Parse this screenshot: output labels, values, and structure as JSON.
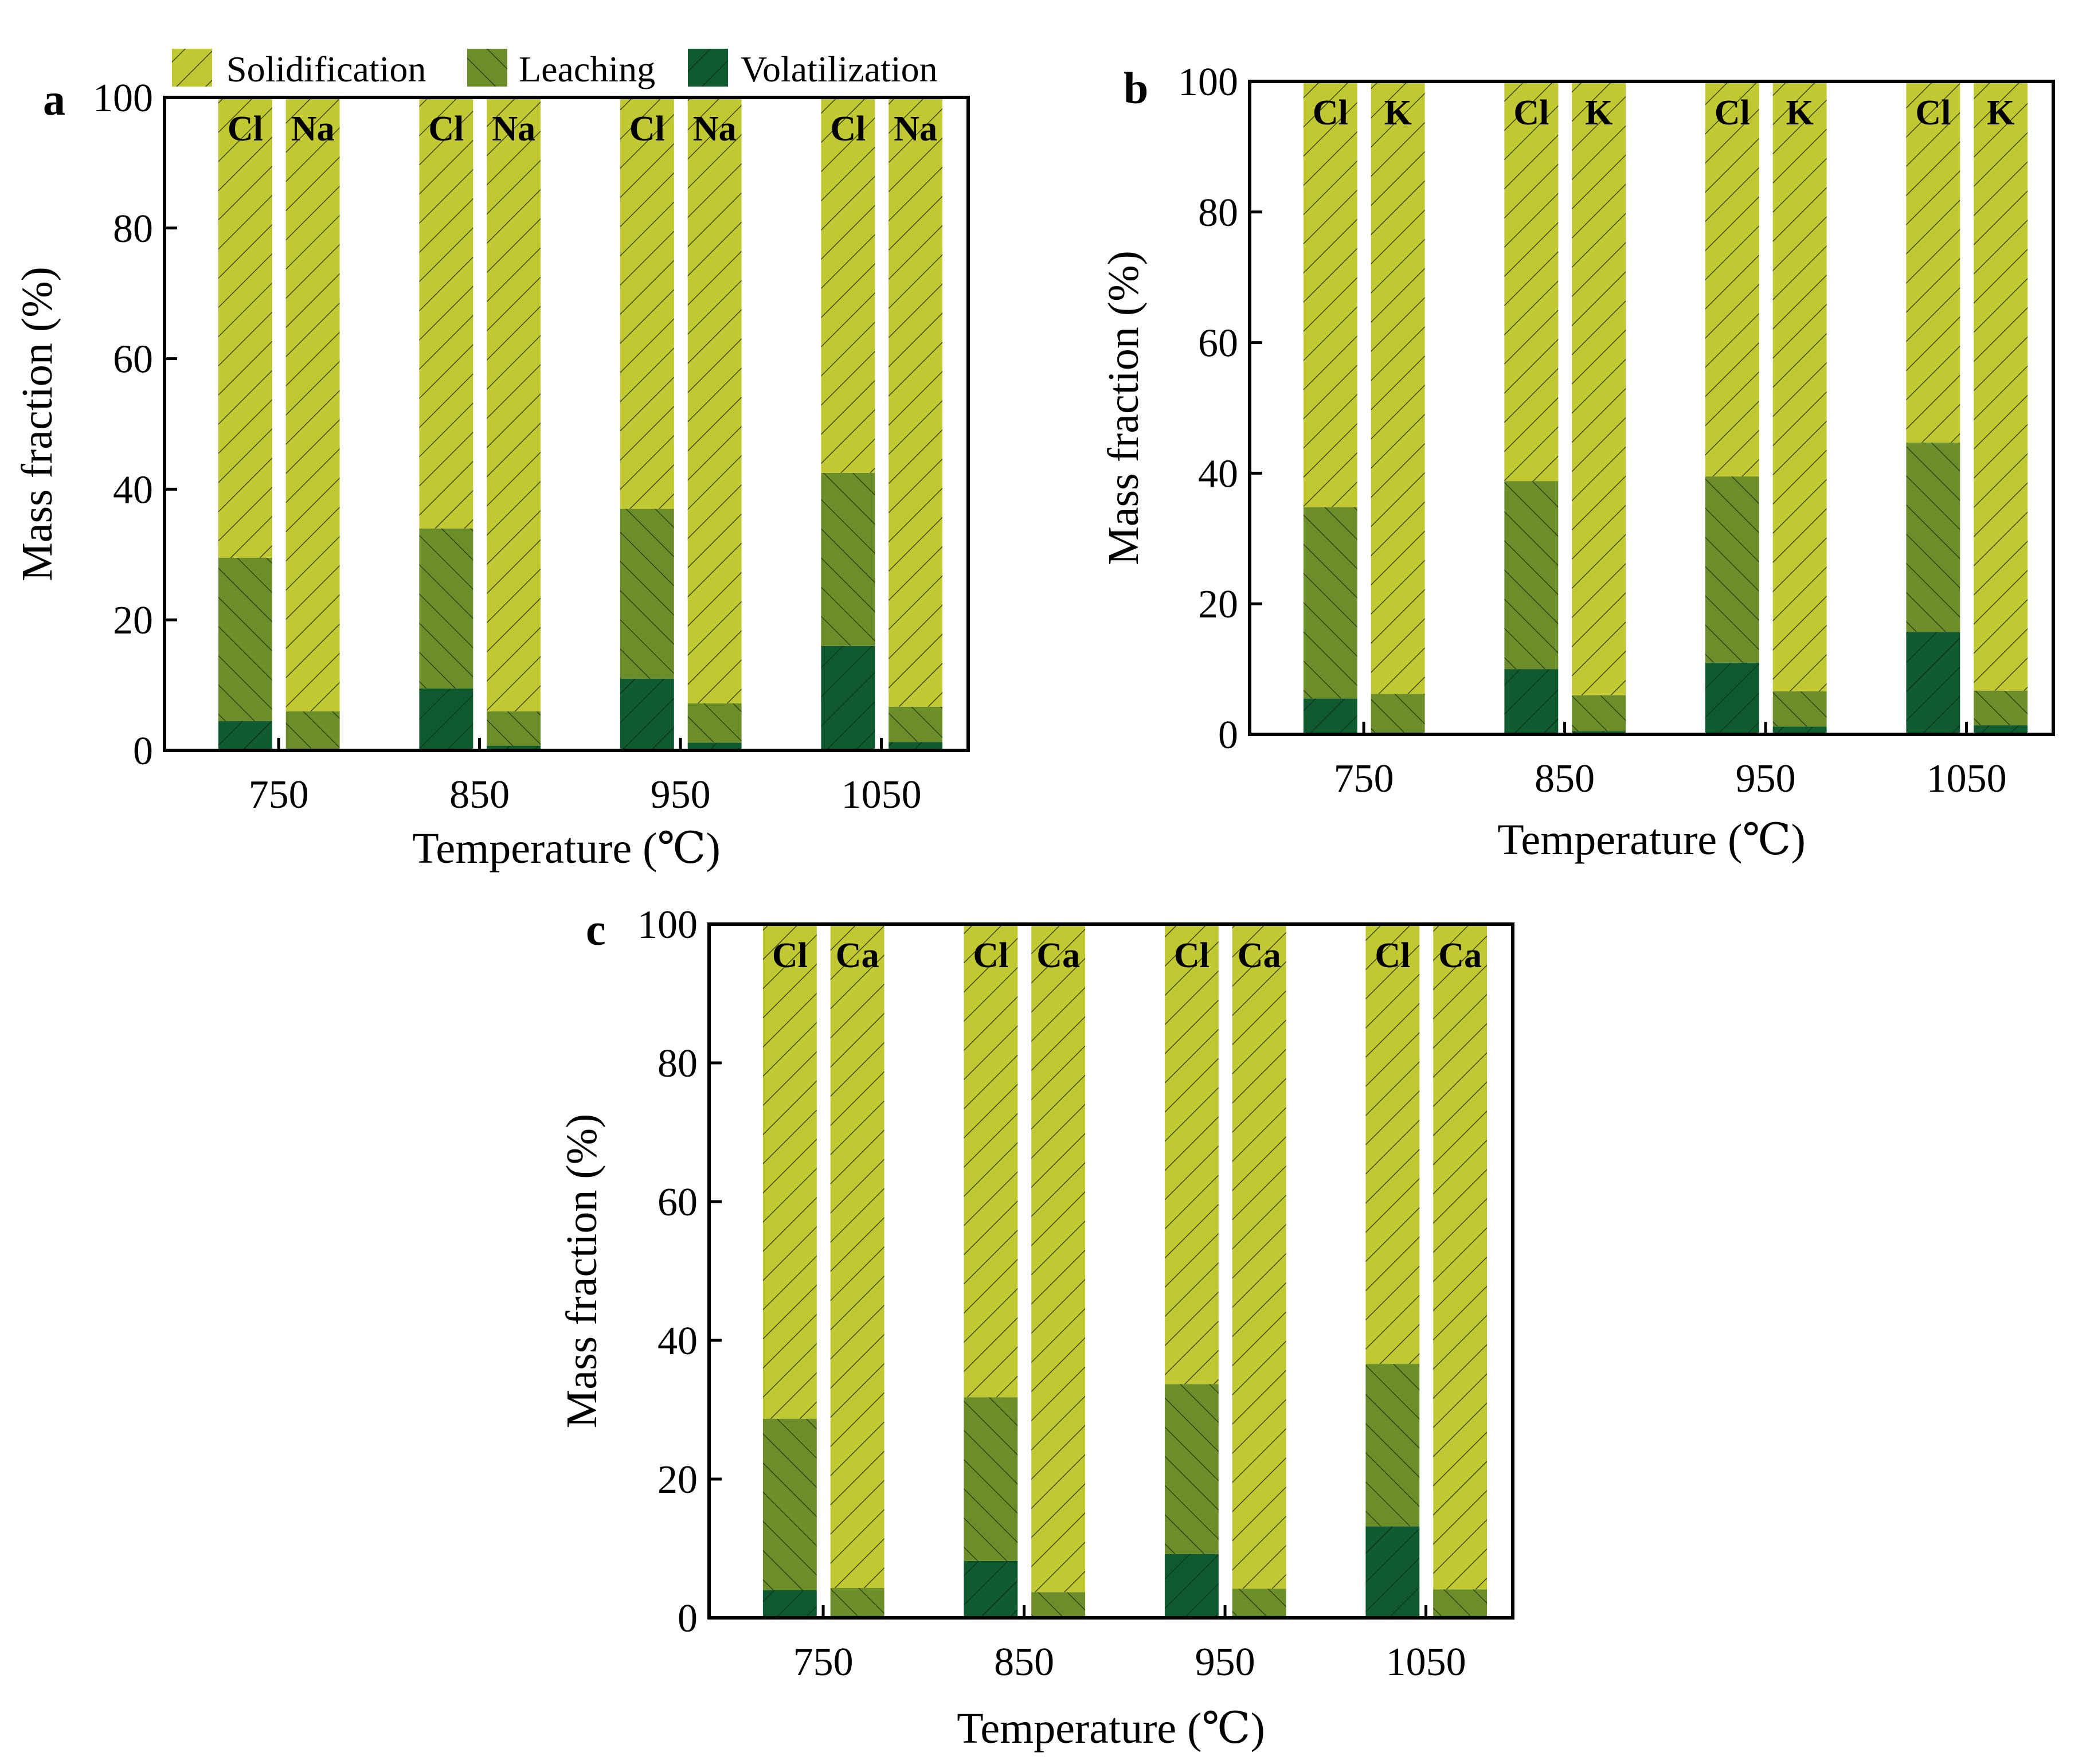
{
  "legend": [
    {
      "key": "solidification",
      "label": "Solidification"
    },
    {
      "key": "leaching",
      "label": "Leaching"
    },
    {
      "key": "volatilization",
      "label": "Volatilization"
    }
  ],
  "colors": {
    "solidification": "#c2c832",
    "leaching": "#6b8e2a",
    "volatilization": "#0f5a2e",
    "hatch": "#2a3a10",
    "axis": "#000000"
  },
  "chart_data": [
    {
      "panel": "a",
      "type": "bar",
      "stacked": true,
      "title": "",
      "xlabel": "Temperature (℃)",
      "ylabel": "Mass fraction (%)",
      "ylim": [
        0,
        100
      ],
      "yticks": [
        "0",
        "20",
        "40",
        "60",
        "80",
        "100"
      ],
      "categories": [
        "750",
        "850",
        "950",
        "1050"
      ],
      "elements": [
        "Cl",
        "Na"
      ],
      "series": [
        {
          "name": "Volatilization",
          "key": "volatilization",
          "values": {
            "Cl": [
              4.5,
              9.5,
              11,
              16
            ],
            "Na": [
              0.3,
              0.7,
              1.2,
              1.3
            ]
          }
        },
        {
          "name": "Leaching",
          "key": "leaching",
          "values": {
            "Cl": [
              25,
              24.5,
              26,
              26.5
            ],
            "Na": [
              5.7,
              5.3,
              6.0,
              5.4
            ]
          }
        },
        {
          "name": "Solidification",
          "key": "solidification",
          "values": {
            "Cl": [
              70.5,
              66,
              63,
              57.5
            ],
            "Na": [
              94,
              94,
              92.8,
              93.3
            ]
          }
        }
      ]
    },
    {
      "panel": "b",
      "type": "bar",
      "stacked": true,
      "title": "",
      "xlabel": "Temperature (℃)",
      "ylabel": "Mass fraction (%)",
      "ylim": [
        0,
        100
      ],
      "yticks": [
        "0",
        "20",
        "40",
        "60",
        "80",
        "100"
      ],
      "categories": [
        "750",
        "850",
        "950",
        "1050"
      ],
      "elements": [
        "Cl",
        "K"
      ],
      "series": [
        {
          "name": "Volatilization",
          "key": "volatilization",
          "values": {
            "Cl": [
              5.5,
              10,
              11,
              15.7
            ],
            "K": [
              0.3,
              0.5,
              1.2,
              1.4
            ]
          }
        },
        {
          "name": "Leaching",
          "key": "leaching",
          "values": {
            "Cl": [
              29.3,
              28.8,
              28.5,
              29
            ],
            "K": [
              5.9,
              5.5,
              5.4,
              5.3
            ]
          }
        },
        {
          "name": "Solidification",
          "key": "solidification",
          "values": {
            "Cl": [
              65.2,
              61.2,
              60.5,
              55.3
            ],
            "K": [
              93.8,
              94,
              93.4,
              93.3
            ]
          }
        }
      ]
    },
    {
      "panel": "c",
      "type": "bar",
      "stacked": true,
      "title": "",
      "xlabel": "Temperature (℃)",
      "ylabel": "Mass fraction (%)",
      "ylim": [
        0,
        100
      ],
      "yticks": [
        "0",
        "20",
        "40",
        "60",
        "80",
        "100"
      ],
      "categories": [
        "750",
        "850",
        "950",
        "1050"
      ],
      "elements": [
        "Cl",
        "Ca"
      ],
      "series": [
        {
          "name": "Volatilization",
          "key": "volatilization",
          "values": {
            "Cl": [
              4,
              8.2,
              9.2,
              13.2
            ],
            "Ca": [
              0.3,
              0.2,
              0.3,
              0.3
            ]
          }
        },
        {
          "name": "Leaching",
          "key": "leaching",
          "values": {
            "Cl": [
              24.7,
              23.6,
              24.5,
              23.4
            ],
            "Ca": [
              4.0,
              3.5,
              3.9,
              3.8
            ]
          }
        },
        {
          "name": "Solidification",
          "key": "solidification",
          "values": {
            "Cl": [
              71.3,
              68.2,
              66.3,
              63.4
            ],
            "Ca": [
              95.7,
              96.3,
              95.8,
              95.9
            ]
          }
        }
      ]
    }
  ]
}
